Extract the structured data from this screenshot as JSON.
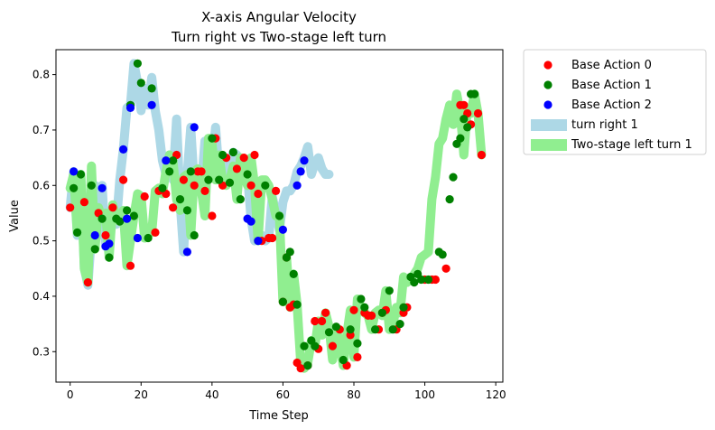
{
  "chart_data": {
    "type": "scatter",
    "title": "X-axis Angular Velocity",
    "subtitle": "Turn right vs Two-stage left turn",
    "xlabel": "Time Step",
    "ylabel": "Value",
    "xlim": [
      -4,
      122
    ],
    "ylim": [
      0.245,
      0.845
    ],
    "xticks": [
      "0",
      "20",
      "40",
      "60",
      "80",
      "100",
      "120"
    ],
    "xtick_values": [
      0,
      20,
      40,
      60,
      80,
      100,
      120
    ],
    "yticks": [
      "0.3",
      "0.4",
      "0.5",
      "0.6",
      "0.7",
      "0.8"
    ],
    "ytick_values": [
      0.3,
      0.4,
      0.5,
      0.6,
      0.7,
      0.8
    ],
    "legend_position": "outside-right",
    "lines": [
      {
        "name": "turn right 1",
        "color": "#add8e6",
        "x": [
          0,
          1,
          2,
          3,
          4,
          5,
          6,
          7,
          8,
          9,
          10,
          11,
          12,
          13,
          14,
          15,
          16,
          17,
          18,
          19,
          20,
          21,
          22,
          23,
          24,
          25,
          26,
          27,
          28,
          29,
          30,
          31,
          32,
          33,
          34,
          35,
          36,
          37,
          38,
          39,
          40,
          41,
          42,
          43,
          44,
          45,
          46,
          47,
          48,
          49,
          50,
          51,
          52,
          53,
          54,
          55,
          56,
          57,
          58,
          59,
          60,
          61,
          62,
          63,
          64,
          65,
          66,
          67,
          68,
          69,
          70,
          71,
          72,
          73
        ],
        "y": [
          0.56,
          0.625,
          0.51,
          0.62,
          0.45,
          0.42,
          0.51,
          0.6,
          0.51,
          0.6,
          0.49,
          0.5,
          0.56,
          0.53,
          0.61,
          0.665,
          0.74,
          0.745,
          0.82,
          0.785,
          0.735,
          0.775,
          0.745,
          0.795,
          0.735,
          0.7,
          0.645,
          0.62,
          0.655,
          0.61,
          0.72,
          0.57,
          0.48,
          0.62,
          0.705,
          0.6,
          0.625,
          0.6,
          0.68,
          0.68,
          0.64,
          0.705,
          0.62,
          0.64,
          0.62,
          0.63,
          0.66,
          0.655,
          0.63,
          0.62,
          0.62,
          0.54,
          0.5,
          0.505,
          0.51,
          0.5,
          0.505,
          0.58,
          0.55,
          0.52,
          0.57,
          0.59,
          0.59,
          0.6,
          0.625,
          0.635,
          0.65,
          0.67,
          0.62,
          0.64,
          0.65,
          0.63,
          0.62,
          0.62
        ]
      },
      {
        "name": "Two-stage left turn 1",
        "color": "#90ee90",
        "x": [
          0,
          1,
          2,
          3,
          4,
          5,
          6,
          7,
          8,
          9,
          10,
          11,
          12,
          13,
          14,
          15,
          16,
          17,
          18,
          19,
          20,
          21,
          22,
          23,
          24,
          25,
          26,
          27,
          28,
          29,
          30,
          31,
          32,
          33,
          34,
          35,
          36,
          37,
          38,
          39,
          40,
          41,
          42,
          43,
          44,
          45,
          46,
          47,
          48,
          49,
          50,
          51,
          52,
          53,
          54,
          55,
          56,
          57,
          58,
          59,
          60,
          61,
          62,
          63,
          64,
          65,
          66,
          67,
          68,
          69,
          70,
          71,
          72,
          73,
          74,
          75,
          76,
          77,
          78,
          79,
          80,
          81,
          82,
          83,
          84,
          85,
          86,
          87,
          88,
          89,
          90,
          91,
          92,
          93,
          94,
          95,
          96,
          97,
          98,
          99,
          100,
          101,
          102,
          103,
          104,
          105,
          106,
          107,
          108,
          109,
          110,
          111,
          112,
          113,
          114,
          115,
          116
        ],
        "y": [
          0.595,
          0.62,
          0.515,
          0.62,
          0.45,
          0.425,
          0.635,
          0.485,
          0.56,
          0.54,
          0.55,
          0.47,
          0.565,
          0.54,
          0.535,
          0.555,
          0.455,
          0.5,
          0.545,
          0.585,
          0.58,
          0.505,
          0.515,
          0.515,
          0.59,
          0.595,
          0.585,
          0.625,
          0.655,
          0.645,
          0.575,
          0.555,
          0.615,
          0.62,
          0.51,
          0.625,
          0.63,
          0.59,
          0.545,
          0.685,
          0.675,
          0.61,
          0.655,
          0.605,
          0.6,
          0.61,
          0.635,
          0.575,
          0.65,
          0.62,
          0.6,
          0.65,
          0.6,
          0.5,
          0.61,
          0.61,
          0.6,
          0.575,
          0.545,
          0.545,
          0.39,
          0.47,
          0.38,
          0.44,
          0.385,
          0.28,
          0.27,
          0.28,
          0.32,
          0.31,
          0.355,
          0.33,
          0.37,
          0.345,
          0.285,
          0.34,
          0.315,
          0.275,
          0.33,
          0.375,
          0.29,
          0.395,
          0.38,
          0.37,
          0.365,
          0.34,
          0.37,
          0.375,
          0.365,
          0.41,
          0.34,
          0.35,
          0.38,
          0.37,
          0.435,
          0.425,
          0.43,
          0.44,
          0.45,
          0.47,
          0.475,
          0.48,
          0.575,
          0.615,
          0.675,
          0.685,
          0.72,
          0.745,
          0.71,
          0.765,
          0.73,
          0.655,
          0.74,
          0.73,
          0.765,
          0.73,
          0.655
        ]
      }
    ],
    "scatter_series": [
      {
        "name": "Base Action 0",
        "color": "#ff0000",
        "x": [
          0,
          4,
          5,
          8,
          10,
          12,
          15,
          17,
          21,
          24,
          25,
          27,
          29,
          30,
          32,
          35,
          36,
          37,
          38,
          40,
          41,
          43,
          44,
          47,
          49,
          51,
          52,
          53,
          54,
          56,
          57,
          58,
          60,
          61,
          62,
          63,
          64,
          65,
          67,
          69,
          70,
          71,
          72,
          74,
          76,
          78,
          79,
          80,
          81,
          83,
          84,
          85,
          87,
          88,
          89,
          92,
          94,
          95,
          100,
          102,
          103,
          106,
          110,
          111,
          112,
          113,
          115,
          116
        ],
        "y": [
          0.56,
          0.57,
          0.425,
          0.55,
          0.51,
          0.56,
          0.61,
          0.455,
          0.58,
          0.515,
          0.59,
          0.585,
          0.56,
          0.655,
          0.61,
          0.6,
          0.625,
          0.625,
          0.59,
          0.545,
          0.685,
          0.6,
          0.65,
          0.63,
          0.65,
          0.6,
          0.655,
          0.585,
          0.5,
          0.505,
          0.505,
          0.59,
          0.39,
          0.47,
          0.38,
          0.385,
          0.28,
          0.27,
          0.275,
          0.355,
          0.305,
          0.355,
          0.37,
          0.31,
          0.34,
          0.275,
          0.33,
          0.375,
          0.29,
          0.37,
          0.365,
          0.365,
          0.34,
          0.37,
          0.375,
          0.34,
          0.37,
          0.38,
          0.43,
          0.43,
          0.43,
          0.45,
          0.745,
          0.745,
          0.73,
          0.71,
          0.73,
          0.655
        ]
      },
      {
        "name": "Base Action 1",
        "color": "#008000",
        "x": [
          1,
          2,
          3,
          6,
          7,
          9,
          11,
          13,
          14,
          16,
          17,
          18,
          19,
          20,
          22,
          23,
          26,
          28,
          29,
          31,
          33,
          34,
          35,
          39,
          40,
          42,
          43,
          45,
          46,
          48,
          50,
          55,
          59,
          60,
          61,
          62,
          63,
          64,
          66,
          67,
          68,
          69,
          73,
          75,
          77,
          79,
          81,
          82,
          83,
          86,
          88,
          90,
          91,
          93,
          94,
          96,
          97,
          98,
          99,
          101,
          104,
          105,
          107,
          108,
          109,
          110,
          111,
          112,
          113,
          114
        ],
        "y": [
          0.595,
          0.515,
          0.62,
          0.6,
          0.485,
          0.54,
          0.47,
          0.54,
          0.535,
          0.555,
          0.745,
          0.545,
          0.82,
          0.785,
          0.505,
          0.775,
          0.595,
          0.625,
          0.645,
          0.575,
          0.555,
          0.625,
          0.51,
          0.61,
          0.685,
          0.61,
          0.655,
          0.605,
          0.66,
          0.575,
          0.62,
          0.6,
          0.545,
          0.39,
          0.47,
          0.48,
          0.44,
          0.385,
          0.31,
          0.275,
          0.32,
          0.31,
          0.335,
          0.345,
          0.285,
          0.34,
          0.315,
          0.395,
          0.38,
          0.34,
          0.37,
          0.41,
          0.34,
          0.35,
          0.38,
          0.435,
          0.425,
          0.44,
          0.43,
          0.43,
          0.48,
          0.475,
          0.575,
          0.615,
          0.675,
          0.685,
          0.72,
          0.705,
          0.765,
          0.765
        ]
      },
      {
        "name": "Base Action 2",
        "color": "#0000ff",
        "x": [
          1,
          7,
          9,
          10,
          11,
          15,
          16,
          17,
          19,
          23,
          27,
          33,
          35,
          50,
          51,
          53,
          60,
          64,
          65,
          66
        ],
        "y": [
          0.625,
          0.51,
          0.595,
          0.49,
          0.495,
          0.665,
          0.54,
          0.74,
          0.505,
          0.745,
          0.645,
          0.48,
          0.705,
          0.54,
          0.535,
          0.5,
          0.52,
          0.6,
          0.625,
          0.645
        ]
      }
    ],
    "legend": [
      {
        "label": "Base Action 0",
        "color": "#ff0000",
        "kind": "dot"
      },
      {
        "label": "Base Action 1",
        "color": "#008000",
        "kind": "dot"
      },
      {
        "label": "Base Action 2",
        "color": "#0000ff",
        "kind": "dot"
      },
      {
        "label": "turn right 1",
        "color": "#add8e6",
        "kind": "band"
      },
      {
        "label": "Two-stage left turn 1",
        "color": "#90ee90",
        "kind": "band"
      }
    ]
  }
}
